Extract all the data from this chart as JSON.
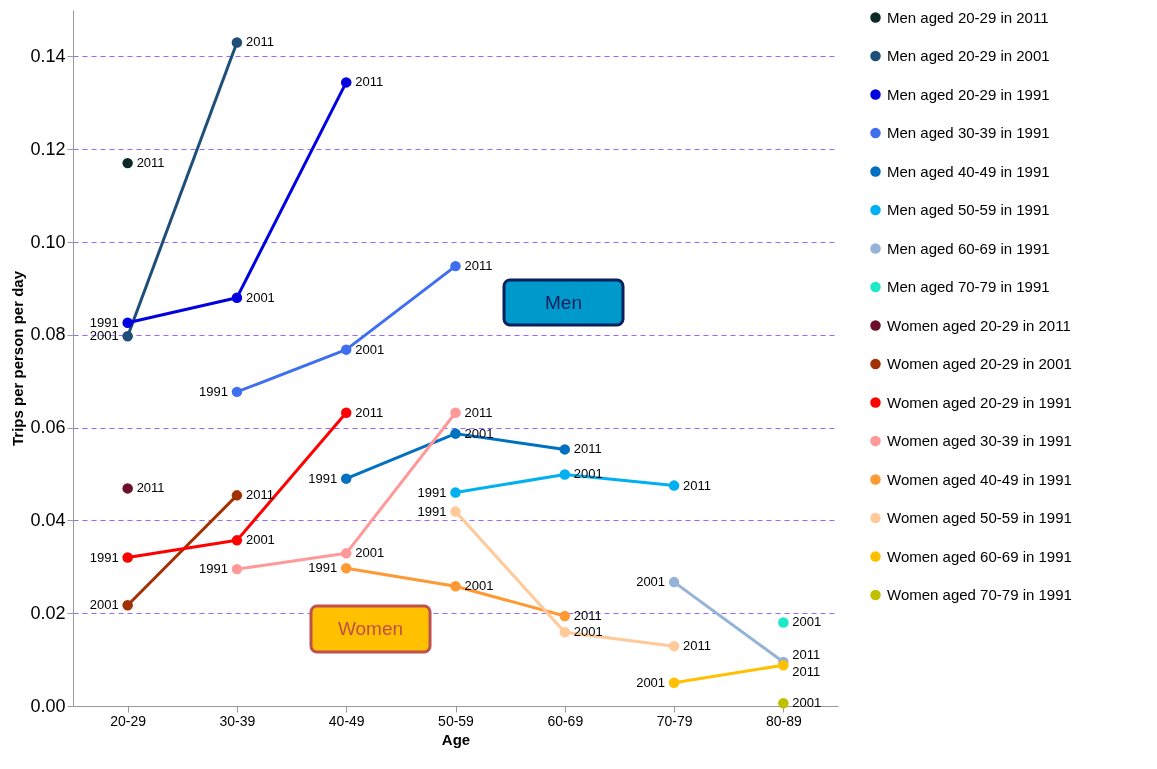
{
  "chart_data": {
    "type": "line",
    "xlabel": "Age",
    "ylabel": "Trips per person per day",
    "categories": [
      "20-29",
      "30-39",
      "40-49",
      "50-59",
      "60-69",
      "70-79",
      "80-89"
    ],
    "ylim": [
      0,
      0.15
    ],
    "yticks": [
      {
        "value": 0,
        "label": "0.00"
      },
      {
        "value": 0.02,
        "label": "0.02"
      },
      {
        "value": 0.04,
        "label": "0.04"
      },
      {
        "value": 0.06,
        "label": "0.06"
      },
      {
        "value": 0.08,
        "label": "0.08"
      },
      {
        "value": 0.1,
        "label": "0.10"
      },
      {
        "value": 0.12,
        "label": "0.12"
      },
      {
        "value": 0.14,
        "label": "0.14"
      }
    ],
    "grid": "y",
    "legend": "right",
    "marker": "circle",
    "series": [
      {
        "name": "Men aged 20-29  in  2011",
        "color": "#0d2b26",
        "values": [
          0.117,
          null,
          null,
          null,
          null,
          null,
          null
        ]
      },
      {
        "name": "Men aged 20-29  in  2001",
        "color": "#1f4e79",
        "values": [
          0.0797,
          0.143,
          null,
          null,
          null,
          null,
          null
        ]
      },
      {
        "name": "Men aged 20-29  in  1991",
        "color": "#0000e0",
        "values": [
          0.0826,
          0.088,
          0.1344,
          null,
          null,
          null,
          null
        ]
      },
      {
        "name": "Men aged 30-39  in  1991",
        "color": "#3f6fef",
        "values": [
          null,
          0.0677,
          0.0768,
          0.0948,
          null,
          null,
          null
        ]
      },
      {
        "name": "Men aged 40-49  in  1991",
        "color": "#0070c0",
        "values": [
          null,
          null,
          0.049,
          0.0587,
          0.0553,
          null,
          null
        ]
      },
      {
        "name": "Men aged 50-59  in  1991",
        "color": "#00b0f0",
        "values": [
          null,
          null,
          null,
          0.046,
          0.0499,
          0.0475,
          null
        ]
      },
      {
        "name": "Men aged 60-69  in  1991",
        "color": "#95b3d7",
        "values": [
          null,
          null,
          null,
          null,
          null,
          0.0267,
          0.0095
        ]
      },
      {
        "name": "Men aged 70-79  in  1991",
        "color": "#1de9c8",
        "values": [
          null,
          null,
          null,
          null,
          null,
          null,
          0.018
        ]
      },
      {
        "name": "Women aged 20-29  in  2011",
        "color": "#6b0f2a",
        "values": [
          0.0469,
          null,
          null,
          null,
          null,
          null,
          null
        ]
      },
      {
        "name": "Women aged 20-29  in  2001",
        "color": "#a33000",
        "values": [
          0.0217,
          0.0454,
          null,
          null,
          null,
          null,
          null
        ]
      },
      {
        "name": "Women aged 20-29  in  1991",
        "color": "#ff0000",
        "values": [
          0.032,
          0.0357,
          0.0632,
          null,
          null,
          null,
          null
        ]
      },
      {
        "name": "Women aged 30-39  in  1991",
        "color": "#ff9999",
        "values": [
          null,
          0.0295,
          0.0329,
          0.0632,
          null,
          null,
          null
        ]
      },
      {
        "name": "Women aged 40-49  in  1991",
        "color": "#ff9933",
        "values": [
          null,
          null,
          0.0297,
          0.0258,
          0.0194,
          null,
          null
        ]
      },
      {
        "name": "Women aged 50-59  in  1991",
        "color": "#ffc999",
        "values": [
          null,
          null,
          null,
          0.0419,
          0.0159,
          0.0129,
          null
        ]
      },
      {
        "name": "Women aged 60-69  in  1991",
        "color": "#ffc000",
        "values": [
          null,
          null,
          null,
          null,
          null,
          0.005,
          0.0088
        ]
      },
      {
        "name": "Women aged 70-79  in  1991",
        "color": "#c0c000",
        "values": [
          null,
          null,
          null,
          null,
          null,
          null,
          0.0006
        ]
      }
    ],
    "annotations": [
      "Men",
      "Women",
      {
        "text": "2011",
        "x": "20-29",
        "y": 0.117
      },
      {
        "text": "1991",
        "x": "20-29",
        "y": 0.0826
      },
      {
        "text": "2001",
        "x": "20-29",
        "y": 0.0797
      },
      {
        "text": "2011",
        "x": "20-29",
        "y": 0.0469
      },
      {
        "text": "1991",
        "x": "20-29",
        "y": 0.032
      },
      {
        "text": "2001",
        "x": "20-29",
        "y": 0.0217
      },
      {
        "text": "2011",
        "x": "30-39",
        "y": 0.143
      },
      {
        "text": "2001",
        "x": "30-39",
        "y": 0.088
      },
      {
        "text": "1991",
        "x": "30-39",
        "y": 0.0677
      },
      {
        "text": "2011",
        "x": "30-39",
        "y": 0.0454
      },
      {
        "text": "2001",
        "x": "30-39",
        "y": 0.0357
      },
      {
        "text": "1991",
        "x": "30-39",
        "y": 0.0295
      },
      {
        "text": "2011",
        "x": "40-49",
        "y": 0.1344
      },
      {
        "text": "2001",
        "x": "40-49",
        "y": 0.0768
      },
      {
        "text": "2011",
        "x": "40-49",
        "y": 0.0632
      },
      {
        "text": "1991",
        "x": "40-49",
        "y": 0.049
      },
      {
        "text": "2001",
        "x": "40-49",
        "y": 0.0329
      },
      {
        "text": "1991",
        "x": "40-49",
        "y": 0.0297
      },
      {
        "text": "2011",
        "x": "50-59",
        "y": 0.0948
      },
      {
        "text": "2011",
        "x": "50-59",
        "y": 0.0632
      },
      {
        "text": "2001",
        "x": "50-59",
        "y": 0.0587
      },
      {
        "text": "1991",
        "x": "50-59",
        "y": 0.046
      },
      {
        "text": "1991",
        "x": "50-59",
        "y": 0.0419
      },
      {
        "text": "2001",
        "x": "50-59",
        "y": 0.0258
      },
      {
        "text": "2011",
        "x": "60-69",
        "y": 0.0553
      },
      {
        "text": "2001",
        "x": "60-69",
        "y": 0.0499
      },
      {
        "text": "2011",
        "x": "60-69",
        "y": 0.0194
      },
      {
        "text": "2001",
        "x": "60-69",
        "y": 0.0159
      },
      {
        "text": "2011",
        "x": "70-79",
        "y": 0.0475
      },
      {
        "text": "2001",
        "x": "70-79",
        "y": 0.0267
      },
      {
        "text": "2011",
        "x": "70-79",
        "y": 0.0129
      },
      {
        "text": "2001",
        "x": "70-79",
        "y": 0.005
      },
      {
        "text": "2001",
        "x": "80-89",
        "y": 0.018
      },
      {
        "text": "2011",
        "x": "80-89",
        "y": 0.0095
      },
      {
        "text": "2011",
        "x": "80-89",
        "y": 0.0088
      },
      {
        "text": "2001",
        "x": "80-89",
        "y": 0.0006
      }
    ]
  }
}
